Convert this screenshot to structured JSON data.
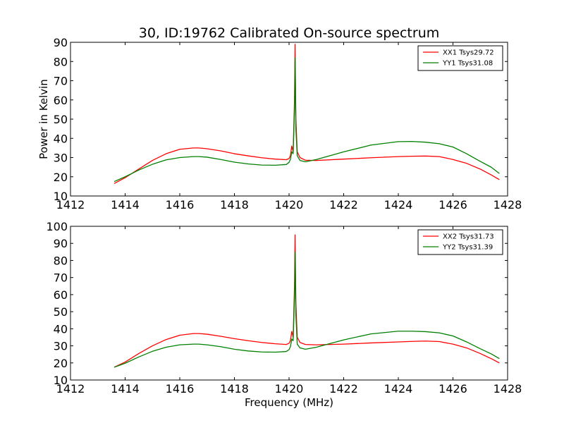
{
  "chart_data": [
    {
      "type": "line",
      "title": "30, ID:19762 Calibrated On-source spectrum",
      "xlabel": "",
      "ylabel": "Power in Kelvin",
      "xlim": [
        1412,
        1428
      ],
      "ylim": [
        10,
        90
      ],
      "xticks": [
        1412,
        1414,
        1416,
        1418,
        1420,
        1422,
        1424,
        1426,
        1428
      ],
      "yticks": [
        10,
        20,
        30,
        40,
        50,
        60,
        70,
        80,
        90
      ],
      "legend_position": "top-right",
      "grid": false,
      "series": [
        {
          "name": "XX1 Tsys29.72",
          "color": "#ff0000",
          "x": [
            1413.6,
            1414.0,
            1414.5,
            1415.0,
            1415.5,
            1416.0,
            1416.5,
            1416.7,
            1417.0,
            1417.5,
            1418.0,
            1418.5,
            1419.0,
            1419.5,
            1419.9,
            1420.0,
            1420.05,
            1420.1,
            1420.15,
            1420.2,
            1420.22,
            1420.25,
            1420.3,
            1420.4,
            1420.6,
            1421.0,
            1422.0,
            1423.0,
            1424.0,
            1424.5,
            1425.0,
            1425.5,
            1426.0,
            1426.5,
            1427.0,
            1427.4,
            1427.7
          ],
          "y": [
            16.5,
            19.5,
            24.0,
            28.5,
            32.0,
            34.3,
            35.0,
            35.0,
            34.6,
            33.5,
            32.0,
            30.9,
            29.9,
            29.2,
            28.9,
            29.5,
            31.0,
            36.0,
            33.0,
            60.0,
            89.0,
            50.0,
            33.0,
            30.0,
            28.6,
            28.5,
            29.2,
            29.9,
            30.5,
            30.7,
            30.8,
            30.5,
            29.0,
            27.0,
            24.0,
            21.0,
            18.5
          ]
        },
        {
          "name": "YY1 Tsys31.08",
          "color": "#008000",
          "x": [
            1413.6,
            1414.0,
            1414.5,
            1415.0,
            1415.5,
            1416.0,
            1416.5,
            1416.7,
            1417.0,
            1417.5,
            1418.0,
            1418.5,
            1419.0,
            1419.5,
            1419.9,
            1420.0,
            1420.05,
            1420.1,
            1420.15,
            1420.2,
            1420.22,
            1420.25,
            1420.3,
            1420.4,
            1420.6,
            1421.0,
            1422.0,
            1423.0,
            1424.0,
            1424.5,
            1425.0,
            1425.5,
            1426.0,
            1426.5,
            1427.0,
            1427.4,
            1427.7
          ],
          "y": [
            17.5,
            20.0,
            23.5,
            26.5,
            28.8,
            30.0,
            30.5,
            30.5,
            30.2,
            29.0,
            27.6,
            26.7,
            26.1,
            26.0,
            26.4,
            27.5,
            29.0,
            33.0,
            32.0,
            55.0,
            82.0,
            45.0,
            31.0,
            28.5,
            27.8,
            29.0,
            33.0,
            36.5,
            38.3,
            38.4,
            38.0,
            37.2,
            35.5,
            32.0,
            28.0,
            25.0,
            21.7
          ]
        }
      ]
    },
    {
      "type": "line",
      "title": "",
      "xlabel": "Frequency (MHz)",
      "ylabel": "",
      "xlim": [
        1412,
        1428
      ],
      "ylim": [
        10,
        100
      ],
      "xticks": [
        1412,
        1414,
        1416,
        1418,
        1420,
        1422,
        1424,
        1426,
        1428
      ],
      "yticks": [
        10,
        20,
        30,
        40,
        50,
        60,
        70,
        80,
        90,
        100
      ],
      "legend_position": "top-right",
      "grid": false,
      "series": [
        {
          "name": "XX2 Tsys31.73",
          "color": "#ff0000",
          "x": [
            1413.6,
            1414.0,
            1414.5,
            1415.0,
            1415.5,
            1416.0,
            1416.5,
            1416.7,
            1417.0,
            1417.5,
            1418.0,
            1418.5,
            1419.0,
            1419.5,
            1419.9,
            1420.0,
            1420.05,
            1420.1,
            1420.15,
            1420.2,
            1420.22,
            1420.25,
            1420.3,
            1420.4,
            1420.6,
            1421.0,
            1422.0,
            1423.0,
            1424.0,
            1424.5,
            1425.0,
            1425.5,
            1426.0,
            1426.5,
            1427.0,
            1427.4,
            1427.7
          ],
          "y": [
            17.5,
            20.5,
            25.5,
            30.0,
            33.7,
            36.2,
            37.2,
            37.2,
            36.8,
            35.6,
            34.2,
            33.0,
            32.0,
            31.2,
            30.8,
            31.5,
            33.0,
            38.5,
            35.0,
            65.0,
            95.0,
            55.0,
            35.0,
            32.0,
            30.8,
            30.6,
            31.0,
            31.7,
            32.3,
            32.6,
            32.8,
            32.5,
            31.0,
            28.8,
            25.5,
            22.5,
            20.0
          ]
        },
        {
          "name": "YY2 Tsys31.39",
          "color": "#008000",
          "x": [
            1413.6,
            1414.0,
            1414.5,
            1415.0,
            1415.5,
            1416.0,
            1416.5,
            1416.7,
            1417.0,
            1417.5,
            1418.0,
            1418.5,
            1419.0,
            1419.5,
            1419.9,
            1420.0,
            1420.05,
            1420.1,
            1420.15,
            1420.2,
            1420.22,
            1420.25,
            1420.3,
            1420.4,
            1420.6,
            1421.0,
            1422.0,
            1423.0,
            1424.0,
            1424.5,
            1425.0,
            1425.5,
            1426.0,
            1426.5,
            1427.0,
            1427.4,
            1427.7
          ],
          "y": [
            17.5,
            19.8,
            23.5,
            26.8,
            29.2,
            30.6,
            31.0,
            31.0,
            30.6,
            29.5,
            28.0,
            27.0,
            26.4,
            26.3,
            26.7,
            27.8,
            29.5,
            34.0,
            33.0,
            58.0,
            85.0,
            48.0,
            31.0,
            28.8,
            28.0,
            29.2,
            33.5,
            37.0,
            38.6,
            38.6,
            38.3,
            37.6,
            35.8,
            32.3,
            28.3,
            25.3,
            22.5
          ]
        }
      ]
    }
  ]
}
